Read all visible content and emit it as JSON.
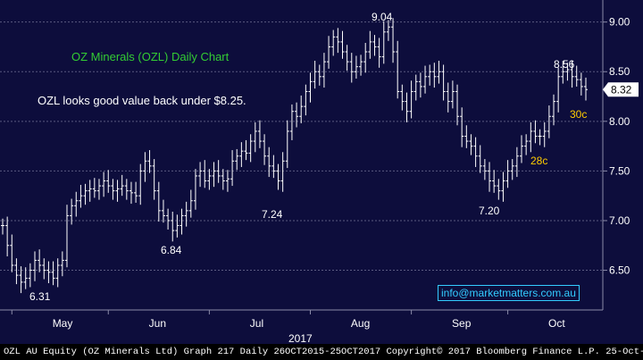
{
  "chart_data": {
    "type": "ohlc",
    "title": "OZ Minerals (OZL) Daily Chart",
    "comment": "OZL looks good value back under $8.25.",
    "email": "info@marketmatters.com.au",
    "y_ticks": [
      "9.00",
      "8.50",
      "8.00",
      "7.50",
      "7.00",
      "6.50"
    ],
    "ylim": [
      6.1,
      9.15
    ],
    "x_ticks": [
      "May",
      "Jun",
      "Jul",
      "Aug",
      "Sep",
      "Oct"
    ],
    "year_label": "2017",
    "last_price": "8.32",
    "grid": true,
    "annotations": [
      "6.31",
      "6.84",
      "7.24",
      "9.04",
      "7.20",
      "8.56",
      "28c",
      "30c"
    ],
    "close": [
      6.95,
      6.75,
      6.55,
      6.45,
      6.38,
      6.42,
      6.5,
      6.6,
      6.55,
      6.5,
      6.48,
      6.42,
      6.55,
      6.6,
      7.05,
      7.15,
      7.2,
      7.25,
      7.3,
      7.32,
      7.3,
      7.35,
      7.4,
      7.35,
      7.3,
      7.32,
      7.35,
      7.3,
      7.28,
      7.25,
      7.5,
      7.6,
      7.55,
      7.3,
      7.1,
      7.05,
      7.0,
      6.9,
      6.95,
      7.05,
      7.1,
      7.2,
      7.45,
      7.5,
      7.4,
      7.45,
      7.5,
      7.45,
      7.4,
      7.42,
      7.6,
      7.65,
      7.7,
      7.68,
      7.8,
      7.9,
      7.8,
      7.65,
      7.55,
      7.5,
      7.4,
      7.6,
      7.9,
      8.1,
      8.05,
      8.15,
      8.3,
      8.4,
      8.5,
      8.45,
      8.6,
      8.75,
      8.85,
      8.8,
      8.7,
      8.6,
      8.5,
      8.55,
      8.6,
      8.7,
      8.8,
      8.75,
      8.65,
      8.9,
      8.95,
      8.7,
      8.3,
      8.2,
      8.1,
      8.3,
      8.4,
      8.35,
      8.45,
      8.5,
      8.45,
      8.5,
      8.3,
      8.2,
      8.3,
      8.05,
      7.85,
      7.8,
      7.75,
      7.65,
      7.55,
      7.5,
      7.4,
      7.35,
      7.3,
      7.4,
      7.5,
      7.55,
      7.65,
      7.75,
      7.8,
      7.9,
      7.85,
      7.85,
      7.9,
      8.05,
      8.2,
      8.45,
      8.5,
      8.52,
      8.45,
      8.42,
      8.35,
      8.32
    ]
  },
  "footer": {
    "text": "OZL AU Equity (OZ Minerals Ltd) Graph 217  Daily 26OCT2015-25OCT2017  Copyright© 2017 Bloomberg Finance L.P.  25-Oct-2017 16:20:09"
  }
}
